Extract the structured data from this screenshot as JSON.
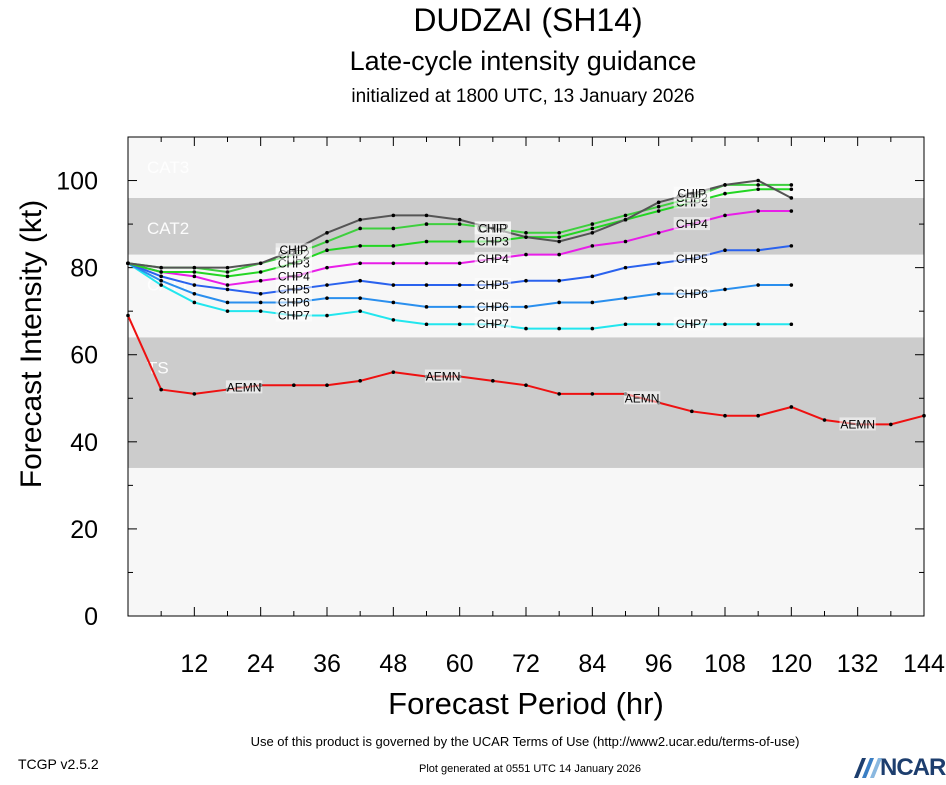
{
  "header": {
    "storm": "DUDZAI (SH14)",
    "subtitle": "Late-cycle intensity guidance",
    "initialized": "initialized at 1800 UTC, 13 January 2026"
  },
  "footer": {
    "terms": "Use of this product is governed by the UCAR Terms of Use (http://www2.ucar.edu/terms-of-use)",
    "generated": "Plot generated at 0551 UTC   14 January 2026",
    "version": "TCGP v2.5.2",
    "logo_text": "NCAR"
  },
  "chart_data": {
    "type": "line",
    "xlabel": "Forecast Period (hr)",
    "ylabel": "Forecast Intensity (kt)",
    "xlim": [
      0,
      144
    ],
    "ylim": [
      0,
      110
    ],
    "x_ticks": [
      12,
      24,
      36,
      48,
      60,
      72,
      84,
      96,
      108,
      120,
      132,
      144
    ],
    "y_ticks": [
      0,
      20,
      40,
      60,
      80,
      100
    ],
    "bands": [
      {
        "label": "TS",
        "from": 34,
        "to": 64,
        "color": "#cccccc"
      },
      {
        "label": "CAT1",
        "from": 64,
        "to": 83,
        "color": "#f7f7f7"
      },
      {
        "label": "CAT2",
        "from": 83,
        "to": 96,
        "color": "#cccccc"
      },
      {
        "label": "CAT3",
        "from": 96,
        "to": 110,
        "color": "#f7f7f7"
      }
    ],
    "series": [
      {
        "name": "AEMN",
        "color": "#ee1111",
        "x": [
          0,
          6,
          12,
          18,
          24,
          30,
          36,
          42,
          48,
          54,
          60,
          66,
          72,
          78,
          84,
          90,
          96,
          102,
          108,
          114,
          120,
          126,
          132,
          138,
          144
        ],
        "values": [
          69,
          52,
          51,
          52,
          53,
          53,
          53,
          54,
          56,
          55,
          55,
          54,
          53,
          51,
          51,
          51,
          49,
          47,
          46,
          46,
          48,
          45,
          44,
          44,
          46
        ],
        "label_x": [
          21,
          57,
          93,
          132
        ]
      },
      {
        "name": "CHP7",
        "color": "#22e6ee",
        "x": [
          0,
          6,
          12,
          18,
          24,
          30,
          36,
          42,
          48,
          54,
          60,
          66,
          72,
          78,
          84,
          90,
          96,
          102,
          108,
          114,
          120
        ],
        "values": [
          81,
          76,
          72,
          70,
          70,
          69,
          69,
          70,
          68,
          67,
          67,
          67,
          66,
          66,
          66,
          67,
          67,
          67,
          67,
          67,
          67
        ],
        "label_x": [
          30,
          66,
          102
        ]
      },
      {
        "name": "CHP6",
        "color": "#2a8fee",
        "x": [
          0,
          6,
          12,
          18,
          24,
          30,
          36,
          42,
          48,
          54,
          60,
          66,
          72,
          78,
          84,
          90,
          96,
          102,
          108,
          114,
          120
        ],
        "values": [
          81,
          77,
          74,
          72,
          72,
          72,
          73,
          73,
          72,
          71,
          71,
          71,
          71,
          72,
          72,
          73,
          74,
          74,
          75,
          76,
          76
        ],
        "label_x": [
          30,
          66,
          102
        ]
      },
      {
        "name": "CHP5",
        "color": "#2a62ee",
        "x": [
          0,
          6,
          12,
          18,
          24,
          30,
          36,
          42,
          48,
          54,
          60,
          66,
          72,
          78,
          84,
          90,
          96,
          102,
          108,
          114,
          120
        ],
        "values": [
          81,
          78,
          76,
          75,
          74,
          75,
          76,
          77,
          76,
          76,
          76,
          76,
          77,
          77,
          78,
          80,
          81,
          82,
          84,
          84,
          85
        ],
        "label_x": [
          30,
          66,
          102
        ]
      },
      {
        "name": "CHP4",
        "color": "#e81ee8",
        "x": [
          0,
          6,
          12,
          18,
          24,
          30,
          36,
          42,
          48,
          54,
          60,
          66,
          72,
          78,
          84,
          90,
          96,
          102,
          108,
          114,
          120
        ],
        "values": [
          81,
          79,
          78,
          76,
          77,
          78,
          80,
          81,
          81,
          81,
          81,
          82,
          83,
          83,
          85,
          86,
          88,
          90,
          92,
          93,
          93
        ],
        "label_x": [
          30,
          66,
          102
        ]
      },
      {
        "name": "CHP3",
        "color": "#23d623",
        "x": [
          0,
          6,
          12,
          18,
          24,
          30,
          36,
          42,
          48,
          54,
          60,
          66,
          72,
          78,
          84,
          90,
          96,
          102,
          108,
          114,
          120
        ],
        "values": [
          81,
          79,
          79,
          78,
          79,
          81,
          84,
          85,
          85,
          86,
          86,
          86,
          87,
          87,
          89,
          91,
          93,
          95,
          97,
          98,
          98
        ],
        "label_x": [
          30,
          66,
          102
        ]
      },
      {
        "name": "CHP2",
        "color": "#3ecf3e",
        "x": [
          0,
          6,
          12,
          18,
          24,
          30,
          36,
          42,
          48,
          54,
          60,
          66,
          72,
          78,
          84,
          90,
          96,
          102,
          108,
          114,
          120
        ],
        "values": [
          81,
          80,
          80,
          79,
          81,
          83,
          86,
          89,
          89,
          90,
          90,
          89,
          88,
          88,
          90,
          92,
          94,
          96,
          99,
          99,
          99
        ],
        "label_x": [
          30,
          66,
          102
        ]
      },
      {
        "name": "CHIP",
        "color": "#555555",
        "x": [
          0,
          6,
          12,
          18,
          24,
          30,
          36,
          42,
          48,
          54,
          60,
          66,
          72,
          78,
          84,
          90,
          96,
          102,
          108,
          114,
          120
        ],
        "values": [
          81,
          80,
          80,
          80,
          81,
          84,
          88,
          91,
          92,
          92,
          91,
          89,
          87,
          86,
          88,
          91,
          95,
          97,
          99,
          100,
          96
        ],
        "label_x": [
          30,
          66,
          102
        ]
      }
    ]
  }
}
